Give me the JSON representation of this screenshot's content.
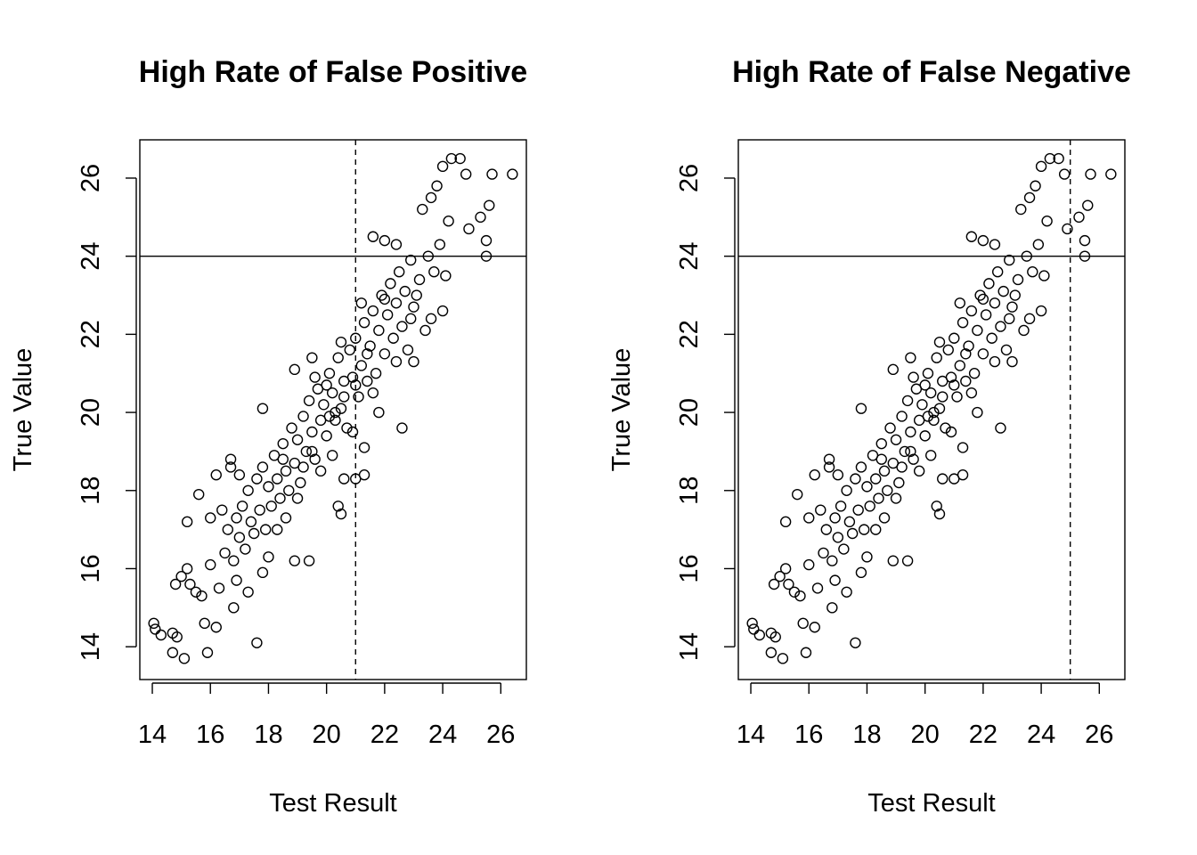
{
  "chart_data": [
    {
      "type": "scatter",
      "title": "High Rate of False Positive",
      "xlabel": "Test Result",
      "ylabel": "True Value",
      "xlim": [
        13.57,
        26.88
      ],
      "ylim": [
        13.16,
        26.98
      ],
      "xticks": [
        "14",
        "16",
        "18",
        "20",
        "22",
        "24",
        "26"
      ],
      "yticks": [
        "14",
        "16",
        "18",
        "20",
        "22",
        "24",
        "26"
      ],
      "hline": 24,
      "vline": 21,
      "vline_style": "dashed",
      "grid": false,
      "points_ref": "points"
    },
    {
      "type": "scatter",
      "title": "High Rate of False Negative",
      "xlabel": "Test Result",
      "ylabel": "True Value",
      "xlim": [
        13.57,
        26.88
      ],
      "ylim": [
        13.16,
        26.98
      ],
      "xticks": [
        "14",
        "16",
        "18",
        "20",
        "22",
        "24",
        "26"
      ],
      "yticks": [
        "14",
        "16",
        "18",
        "20",
        "22",
        "24",
        "26"
      ],
      "hline": 24,
      "vline": 25,
      "vline_style": "dashed",
      "grid": false,
      "points_ref": "points"
    }
  ],
  "points": [
    [
      14.05,
      14.6
    ],
    [
      14.1,
      14.45
    ],
    [
      14.3,
      14.3
    ],
    [
      14.7,
      14.35
    ],
    [
      14.85,
      14.25
    ],
    [
      14.7,
      13.85
    ],
    [
      15.1,
      13.7
    ],
    [
      15.9,
      13.85
    ],
    [
      14.8,
      15.6
    ],
    [
      15.0,
      15.8
    ],
    [
      15.2,
      16.0
    ],
    [
      15.3,
      15.6
    ],
    [
      15.5,
      15.4
    ],
    [
      15.2,
      17.2
    ],
    [
      15.6,
      17.9
    ],
    [
      16.0,
      17.3
    ],
    [
      16.2,
      18.4
    ],
    [
      16.7,
      18.6
    ],
    [
      16.7,
      18.8
    ],
    [
      17.6,
      14.1
    ],
    [
      17.8,
      20.1
    ],
    [
      18.9,
      21.1
    ],
    [
      19.5,
      21.4
    ],
    [
      20.4,
      17.6
    ],
    [
      20.5,
      17.4
    ],
    [
      21.0,
      18.3
    ],
    [
      21.3,
      18.4
    ],
    [
      21.3,
      19.1
    ],
    [
      22.6,
      19.6
    ],
    [
      23.0,
      21.3
    ],
    [
      23.6,
      22.4
    ],
    [
      24.0,
      22.6
    ],
    [
      25.5,
      24.0
    ],
    [
      25.5,
      24.4
    ],
    [
      25.3,
      25.0
    ],
    [
      25.6,
      25.3
    ],
    [
      25.7,
      26.1
    ],
    [
      26.4,
      26.1
    ],
    [
      24.8,
      26.1
    ],
    [
      24.6,
      26.5
    ],
    [
      24.3,
      26.5
    ],
    [
      24.0,
      26.3
    ],
    [
      23.8,
      25.8
    ],
    [
      21.6,
      24.5
    ],
    [
      22.0,
      24.4
    ],
    [
      22.4,
      24.3
    ],
    [
      23.3,
      25.2
    ],
    [
      23.6,
      25.5
    ],
    [
      24.2,
      24.9
    ],
    [
      24.9,
      24.7
    ],
    [
      19.4,
      16.2
    ],
    [
      18.9,
      16.2
    ],
    [
      17.8,
      15.9
    ],
    [
      16.9,
      15.7
    ],
    [
      16.8,
      15.0
    ],
    [
      16.2,
      14.5
    ],
    [
      15.8,
      14.6
    ],
    [
      20.6,
      18.3
    ],
    [
      16.5,
      16.4
    ],
    [
      16.6,
      17.0
    ],
    [
      16.8,
      16.2
    ],
    [
      16.9,
      17.3
    ],
    [
      17.0,
      16.8
    ],
    [
      17.1,
      17.6
    ],
    [
      17.2,
      16.5
    ],
    [
      17.3,
      18.0
    ],
    [
      17.4,
      17.2
    ],
    [
      17.5,
      16.9
    ],
    [
      17.6,
      18.3
    ],
    [
      17.7,
      17.5
    ],
    [
      17.8,
      18.6
    ],
    [
      17.9,
      17.0
    ],
    [
      18.0,
      18.1
    ],
    [
      18.1,
      17.6
    ],
    [
      18.2,
      18.9
    ],
    [
      18.3,
      18.3
    ],
    [
      18.4,
      17.8
    ],
    [
      18.5,
      19.2
    ],
    [
      18.6,
      18.5
    ],
    [
      18.7,
      18.0
    ],
    [
      18.8,
      19.6
    ],
    [
      18.9,
      18.7
    ],
    [
      19.0,
      19.3
    ],
    [
      19.1,
      18.2
    ],
    [
      19.2,
      19.9
    ],
    [
      19.3,
      19.0
    ],
    [
      19.4,
      20.3
    ],
    [
      19.5,
      19.5
    ],
    [
      19.6,
      18.8
    ],
    [
      19.7,
      20.6
    ],
    [
      19.8,
      19.8
    ],
    [
      19.9,
      20.2
    ],
    [
      20.0,
      19.4
    ],
    [
      20.1,
      21.0
    ],
    [
      20.2,
      20.5
    ],
    [
      20.3,
      19.8
    ],
    [
      20.4,
      21.4
    ],
    [
      20.5,
      20.1
    ],
    [
      20.6,
      20.8
    ],
    [
      20.7,
      19.6
    ],
    [
      20.8,
      21.6
    ],
    [
      20.9,
      20.9
    ],
    [
      21.0,
      21.9
    ],
    [
      21.1,
      20.4
    ],
    [
      21.2,
      21.2
    ],
    [
      21.3,
      22.3
    ],
    [
      21.4,
      20.8
    ],
    [
      21.5,
      21.7
    ],
    [
      21.6,
      22.6
    ],
    [
      21.7,
      21.0
    ],
    [
      21.8,
      22.1
    ],
    [
      21.9,
      23.0
    ],
    [
      22.0,
      21.5
    ],
    [
      22.1,
      22.5
    ],
    [
      22.2,
      23.3
    ],
    [
      22.3,
      21.9
    ],
    [
      22.4,
      22.8
    ],
    [
      22.5,
      23.6
    ],
    [
      22.6,
      22.2
    ],
    [
      22.7,
      23.1
    ],
    [
      22.8,
      21.6
    ],
    [
      22.9,
      23.9
    ],
    [
      23.0,
      22.7
    ],
    [
      23.2,
      23.4
    ],
    [
      23.4,
      22.1
    ],
    [
      23.5,
      24.0
    ],
    [
      23.7,
      23.6
    ],
    [
      23.9,
      24.3
    ],
    [
      24.1,
      23.5
    ],
    [
      18.3,
      17.0
    ],
    [
      18.5,
      18.8
    ],
    [
      19.0,
      17.8
    ],
    [
      19.2,
      18.6
    ],
    [
      19.6,
      20.9
    ],
    [
      20.0,
      20.7
    ],
    [
      20.3,
      20.0
    ],
    [
      20.5,
      21.8
    ],
    [
      20.9,
      19.5
    ],
    [
      21.2,
      22.8
    ],
    [
      21.6,
      20.5
    ],
    [
      22.0,
      22.9
    ],
    [
      16.0,
      16.1
    ],
    [
      16.3,
      15.5
    ],
    [
      15.7,
      15.3
    ],
    [
      16.4,
      17.5
    ],
    [
      17.0,
      18.4
    ],
    [
      17.3,
      15.4
    ],
    [
      18.0,
      16.3
    ],
    [
      18.6,
      17.3
    ],
    [
      19.8,
      18.5
    ],
    [
      20.2,
      18.9
    ],
    [
      21.8,
      20.0
    ],
    [
      22.4,
      21.3
    ],
    [
      23.1,
      23.0
    ],
    [
      22.9,
      22.4
    ],
    [
      19.5,
      19.0
    ],
    [
      20.6,
      20.4
    ],
    [
      21.0,
      20.7
    ],
    [
      21.4,
      21.5
    ],
    [
      20.1,
      19.9
    ]
  ]
}
